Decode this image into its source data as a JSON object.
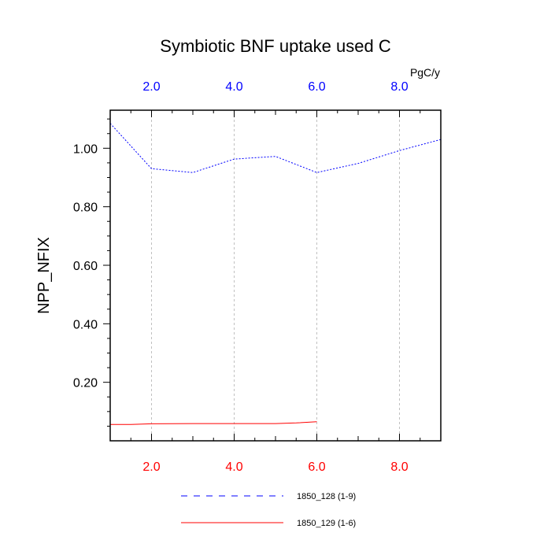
{
  "chart_data": {
    "type": "line",
    "title": "Symbiotic BNF uptake used C",
    "ylabel": "NPP_NFIX",
    "units_label": "PgC/y",
    "xlim": [
      1,
      9
    ],
    "ylim": [
      0,
      1.13
    ],
    "x_ticks": [
      2,
      4,
      6,
      8
    ],
    "x_tick_labels": [
      "2.0",
      "4.0",
      "6.0",
      "8.0"
    ],
    "y_ticks": [
      0.2,
      0.4,
      0.6,
      0.8,
      1.0
    ],
    "y_tick_labels": [
      "0.20",
      "0.40",
      "0.60",
      "0.80",
      "1.00"
    ],
    "grid": "vertical dashed at major x ticks",
    "legend_position": "bottom",
    "series": [
      {
        "name": "1850_128 (1-9)",
        "color": "#0000ff",
        "dash": "dashed",
        "x": [
          1,
          2,
          3,
          4,
          5,
          6,
          7,
          8,
          9
        ],
        "y": [
          1.085,
          0.93,
          0.917,
          0.963,
          0.972,
          0.917,
          0.948,
          0.992,
          1.03
        ]
      },
      {
        "name": "1850_129 (1-6)",
        "color": "#ff0000",
        "dash": "solid",
        "x": [
          1,
          1.5,
          2,
          3,
          4,
          5,
          5.5,
          6
        ],
        "y": [
          0.056,
          0.056,
          0.058,
          0.059,
          0.059,
          0.059,
          0.061,
          0.065
        ]
      }
    ],
    "top_axis_color": "#0000ff",
    "bottom_axis_color": "#ff0000"
  }
}
